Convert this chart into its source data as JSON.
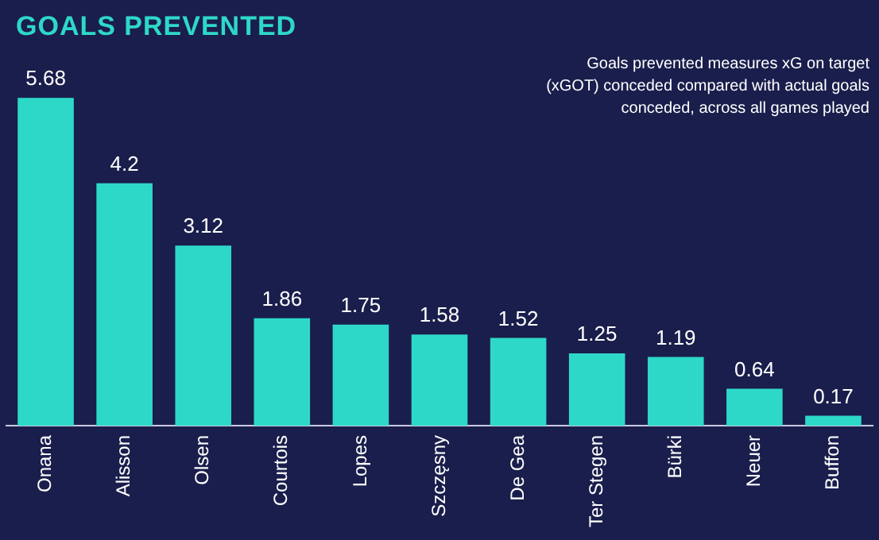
{
  "chart_data": {
    "type": "bar",
    "title": "GOALS PREVENTED",
    "annotations": [
      "Goals prevented measures xG on target (xGOT) conceded compared with actual goals conceded, across all games played"
    ],
    "categories": [
      "Onana",
      "Alisson",
      "Olsen",
      "Courtois",
      "Lopes",
      "Szczęsny",
      "De Gea",
      "Ter Stegen",
      "Bürki",
      "Neuer",
      "Buffon"
    ],
    "values": [
      5.68,
      4.2,
      3.12,
      1.86,
      1.75,
      1.58,
      1.52,
      1.25,
      1.19,
      0.64,
      0.17
    ],
    "color": "#2ed8c8",
    "data_labels": true,
    "grid": false,
    "legend": false,
    "tick_labels": "x"
  }
}
